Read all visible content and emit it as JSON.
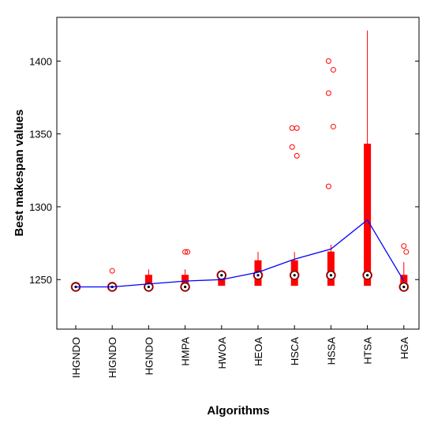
{
  "chart_data": {
    "type": "box",
    "title": "",
    "xlabel": "Algorithms",
    "ylabel": "Best makespan values",
    "ylim": [
      1216,
      1430
    ],
    "yticks": [
      1250,
      1300,
      1350,
      1400
    ],
    "categories": [
      "IHGNDO",
      "HIGNDO",
      "HGNDO",
      "HMPA",
      "HWOA",
      "HEOA",
      "HSCA",
      "HSSA",
      "HTSA",
      "HGA"
    ],
    "box_color": "#ff0000",
    "mean_line_color": "#0000ff",
    "boxes": [
      {
        "q1": 1245,
        "q3": 1245,
        "median": 1245,
        "whisker_low": 1245,
        "whisker_high": 1245,
        "outliers": []
      },
      {
        "q1": 1245,
        "q3": 1245,
        "median": 1245,
        "whisker_low": 1245,
        "whisker_high": 1245,
        "outliers": [
          1256
        ]
      },
      {
        "q1": 1245,
        "q3": 1253,
        "median": 1245,
        "whisker_low": 1245,
        "whisker_high": 1257,
        "outliers": []
      },
      {
        "q1": 1245,
        "q3": 1253,
        "median": 1245,
        "whisker_low": 1245,
        "whisker_high": 1257,
        "outliers": [
          1269,
          1269
        ]
      },
      {
        "q1": 1246,
        "q3": 1253,
        "median": 1253,
        "whisker_low": 1246,
        "whisker_high": 1253,
        "outliers": []
      },
      {
        "q1": 1246,
        "q3": 1263,
        "median": 1253,
        "whisker_low": 1246,
        "whisker_high": 1269,
        "outliers": []
      },
      {
        "q1": 1246,
        "q3": 1263,
        "median": 1253,
        "whisker_low": 1246,
        "whisker_high": 1269,
        "outliers": [
          1354,
          1354,
          1341,
          1335
        ]
      },
      {
        "q1": 1246,
        "q3": 1269,
        "median": 1253,
        "whisker_low": 1246,
        "whisker_high": 1274,
        "outliers": [
          1400,
          1394,
          1378,
          1355,
          1314
        ]
      },
      {
        "q1": 1246,
        "q3": 1343,
        "median": 1253,
        "whisker_low": 1246,
        "whisker_high": 1421,
        "outliers": []
      },
      {
        "q1": 1245,
        "q3": 1253,
        "median": 1245,
        "whisker_low": 1245,
        "whisker_high": 1262,
        "outliers": [
          1273,
          1269
        ]
      }
    ],
    "mean_line": [
      1245,
      1245,
      1247,
      1249,
      1250,
      1255,
      1264,
      1271,
      1291,
      1249
    ]
  }
}
